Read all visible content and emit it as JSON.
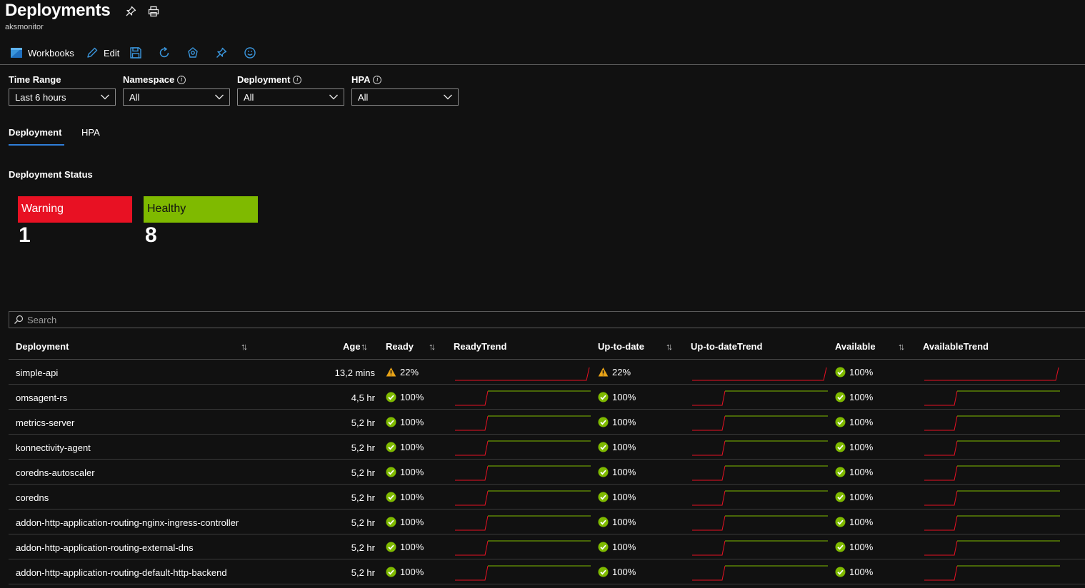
{
  "header": {
    "title": "Deployments",
    "subtitle": "aksmonitor"
  },
  "toolbar": {
    "workbooks_label": "Workbooks",
    "edit_label": "Edit"
  },
  "filters": [
    {
      "label": "Time Range",
      "value": "Last 6 hours",
      "info": false
    },
    {
      "label": "Namespace",
      "value": "All",
      "info": true
    },
    {
      "label": "Deployment",
      "value": "All",
      "info": true
    },
    {
      "label": "HPA",
      "value": "All",
      "info": true
    }
  ],
  "tabs": [
    {
      "label": "Deployment",
      "active": true
    },
    {
      "label": "HPA",
      "active": false
    }
  ],
  "status_section": {
    "title": "Deployment Status",
    "tiles": [
      {
        "label": "Warning",
        "count": "1",
        "color": "#e81123"
      },
      {
        "label": "Healthy",
        "count": "8",
        "color": "#7fba00"
      }
    ]
  },
  "search": {
    "placeholder": "Search"
  },
  "table": {
    "columns": [
      "Deployment",
      "Age",
      "Ready",
      "ReadyTrend",
      "Up-to-date",
      "Up-to-dateTrend",
      "Available",
      "AvailableTrend"
    ],
    "rows": [
      {
        "name": "simple-api",
        "age": "13,2 mins",
        "ready": "22%",
        "ready_state": "warning",
        "uptodate": "22%",
        "uptodate_state": "warning",
        "available": "100%",
        "available_state": "ok",
        "trend": "spike"
      },
      {
        "name": "omsagent-rs",
        "age": "4,5 hr",
        "ready": "100%",
        "ready_state": "ok",
        "uptodate": "100%",
        "uptodate_state": "ok",
        "available": "100%",
        "available_state": "ok",
        "trend": "step"
      },
      {
        "name": "metrics-server",
        "age": "5,2 hr",
        "ready": "100%",
        "ready_state": "ok",
        "uptodate": "100%",
        "uptodate_state": "ok",
        "available": "100%",
        "available_state": "ok",
        "trend": "step"
      },
      {
        "name": "konnectivity-agent",
        "age": "5,2 hr",
        "ready": "100%",
        "ready_state": "ok",
        "uptodate": "100%",
        "uptodate_state": "ok",
        "available": "100%",
        "available_state": "ok",
        "trend": "step"
      },
      {
        "name": "coredns-autoscaler",
        "age": "5,2 hr",
        "ready": "100%",
        "ready_state": "ok",
        "uptodate": "100%",
        "uptodate_state": "ok",
        "available": "100%",
        "available_state": "ok",
        "trend": "step"
      },
      {
        "name": "coredns",
        "age": "5,2 hr",
        "ready": "100%",
        "ready_state": "ok",
        "uptodate": "100%",
        "uptodate_state": "ok",
        "available": "100%",
        "available_state": "ok",
        "trend": "step"
      },
      {
        "name": "addon-http-application-routing-nginx-ingress-controller",
        "age": "5,2 hr",
        "ready": "100%",
        "ready_state": "ok",
        "uptodate": "100%",
        "uptodate_state": "ok",
        "available": "100%",
        "available_state": "ok",
        "trend": "step"
      },
      {
        "name": "addon-http-application-routing-external-dns",
        "age": "5,2 hr",
        "ready": "100%",
        "ready_state": "ok",
        "uptodate": "100%",
        "uptodate_state": "ok",
        "available": "100%",
        "available_state": "ok",
        "trend": "step"
      },
      {
        "name": "addon-http-application-routing-default-http-backend",
        "age": "5,2 hr",
        "ready": "100%",
        "ready_state": "ok",
        "uptodate": "100%",
        "uptodate_state": "ok",
        "available": "100%",
        "available_state": "ok",
        "trend": "step"
      }
    ]
  },
  "colors": {
    "accent": "#2f7ed8",
    "ok": "#7fba00",
    "warning": "#e8a317",
    "trend_low": "#e81123",
    "trend_high": "#7fba00",
    "icon_blue": "#3a96dd"
  }
}
